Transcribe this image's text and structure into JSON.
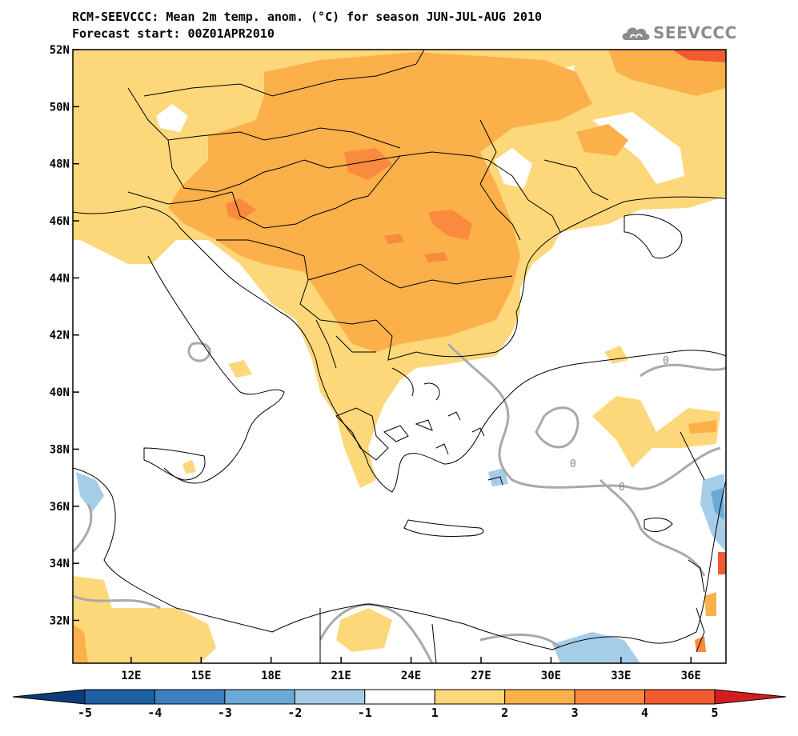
{
  "title": {
    "line1": "RCM-SEEVCCC: Mean 2m temp. anom. (°C) for season JUN-JUL-AUG 2010",
    "line2": "Forecast start: 00Z01APR2010"
  },
  "logo": {
    "text": "SEEVCCC",
    "icon": "cloud-icon"
  },
  "map": {
    "lat_ticks": [
      "52N",
      "50N",
      "48N",
      "46N",
      "44N",
      "42N",
      "40N",
      "38N",
      "36N",
      "34N",
      "32N"
    ],
    "lon_ticks": [
      "12E",
      "15E",
      "18E",
      "21E",
      "24E",
      "27E",
      "30E",
      "33E",
      "36E"
    ],
    "lon_range": [
      9.5,
      37.5
    ],
    "lat_range": [
      30.5,
      52
    ],
    "contour_label": "0"
  },
  "colorbar": {
    "labels": [
      "-5",
      "-4",
      "-3",
      "-2",
      "-1",
      "1",
      "2",
      "3",
      "4",
      "5"
    ],
    "colors": [
      "#1d5fa3",
      "#3d7fc0",
      "#6aa9d8",
      "#a6cde8",
      "#ffffff",
      "#fdd87a",
      "#fbb04a",
      "#f98a3e",
      "#f25a30"
    ],
    "low_arrow_color": "#0d3c7a",
    "high_arrow_color": "#d21e1e"
  }
}
